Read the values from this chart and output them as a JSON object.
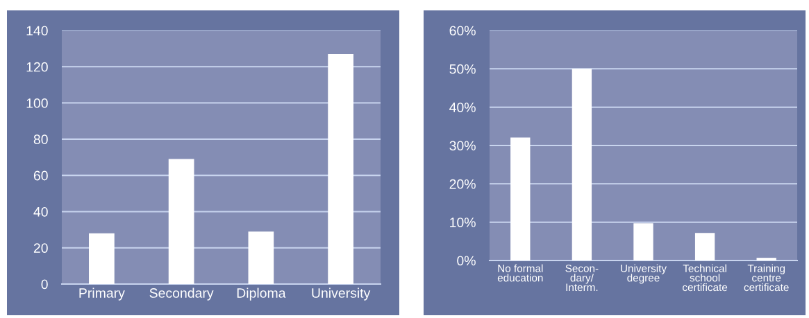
{
  "chart_data": [
    {
      "type": "bar",
      "categories": [
        "Primary",
        "Secondary",
        "Diploma",
        "University"
      ],
      "values": [
        28,
        69,
        29,
        127
      ],
      "color": "#ffffff",
      "ylim": [
        0,
        140
      ],
      "yticks": [
        0,
        20,
        40,
        60,
        80,
        100,
        120,
        140
      ],
      "grid": "y"
    },
    {
      "type": "bar",
      "categories": [
        "No formal\neducation",
        "Secon-\ndary/\nInterm.",
        "University\ndegree",
        "Technical\nschool\ncertificate",
        "Training\ncentre\ncertificate"
      ],
      "values": [
        32.1,
        50,
        9.7,
        7.2,
        0.7
      ],
      "color": "#ffffff",
      "ylim": [
        0,
        60
      ],
      "yticks": [
        {
          "value": 0,
          "label": "0%"
        },
        {
          "value": 10,
          "label": "10%"
        },
        {
          "value": 20,
          "label": "20%"
        },
        {
          "value": 30,
          "label": "30%"
        },
        {
          "value": 40,
          "label": "40%"
        },
        {
          "value": 50,
          "label": "50%"
        },
        {
          "value": 60,
          "label": "60%"
        }
      ],
      "grid": "y"
    }
  ]
}
